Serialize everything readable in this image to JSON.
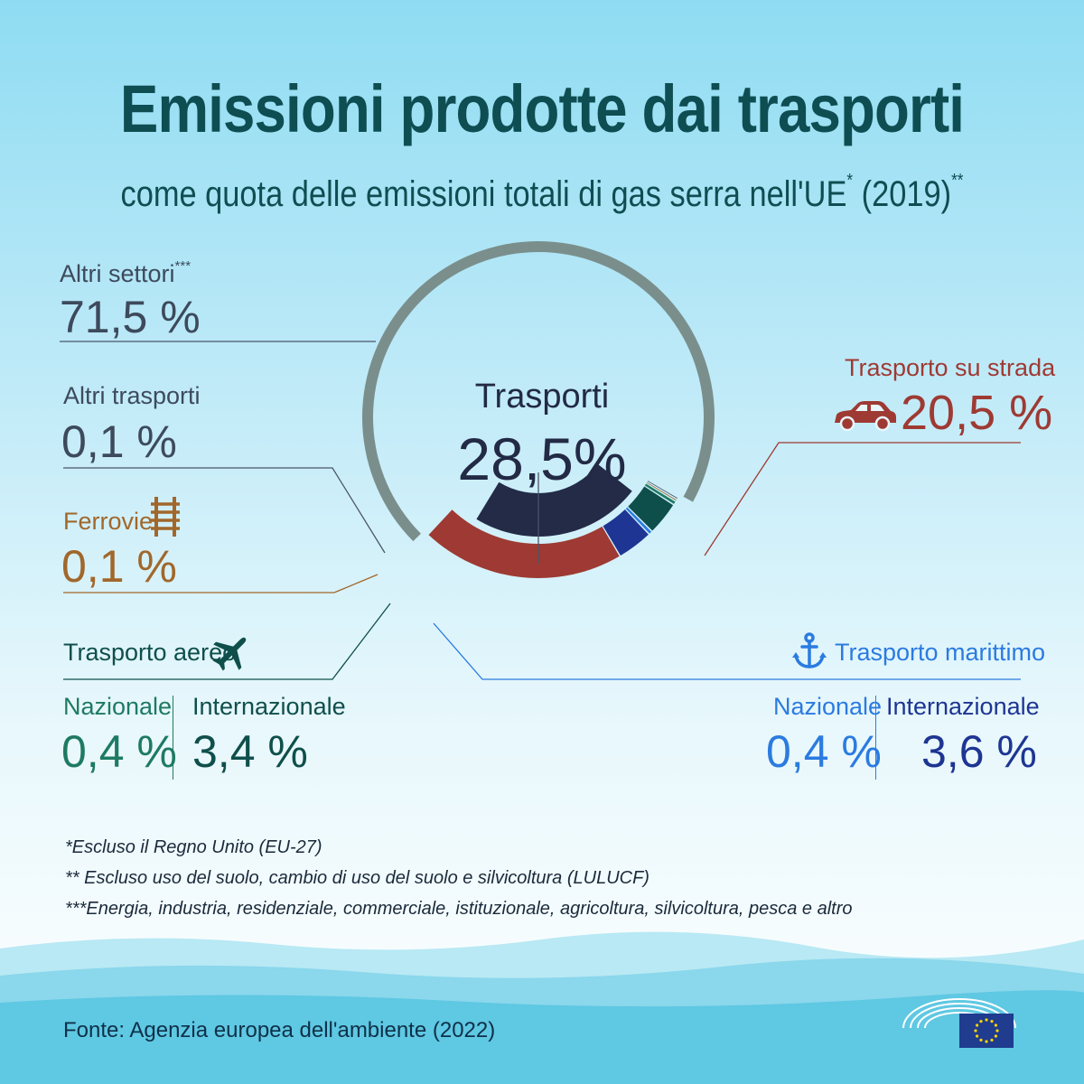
{
  "title": "Emissioni prodotte dai trasporti",
  "subtitle_main": "come quota delle emissioni totali di gas serra nell'UE",
  "subtitle_mark1": "*",
  "subtitle_year": "(2019)",
  "subtitle_mark2": "**",
  "center": {
    "label": "Trasporti",
    "value": "28,5%"
  },
  "labels": {
    "altri_settori": {
      "name": "Altri settori",
      "mark": "***",
      "value": "71,5 %"
    },
    "altri_trasporti": {
      "name": "Altri trasporti",
      "value": "0,1 %"
    },
    "ferrovie": {
      "name": "Ferrovie",
      "value": "0,1 %"
    },
    "strada": {
      "name": "Trasporto su strada",
      "value": "20,5 %"
    },
    "aereo": {
      "name": "Trasporto aereo",
      "naz_label": "Nazionale",
      "naz_value": "0,4 %",
      "int_label": "Internazionale",
      "int_value": "3,4 %"
    },
    "marittimo": {
      "name": "Trasporto marittimo",
      "naz_label": "Nazionale",
      "naz_value": "0,4 %",
      "int_label": "Internazionale",
      "int_value": "3,6 %"
    }
  },
  "notes": [
    "*Escluso il Regno Unito (EU-27)",
    "** Escluso uso del suolo, cambio di uso del suolo e silvicoltura (LULUCF)",
    "***Energia, industria, residenziale, commerciale, istituzionale, agricoltura, silvicoltura, pesca e altro"
  ],
  "source": "Fonte: Agenzia europea dell'ambiente (2022)",
  "colors": {
    "altri_settori": "#7a8f8c",
    "trasporti_total": "#232b47",
    "strada": "#9e3a33",
    "aereo_int": "#0f4f4b",
    "aereo_naz": "#1e7a63",
    "marittimo_int": "#1e3593",
    "marittimo_naz": "#2b7be0",
    "ferrovie": "#a1672b",
    "altri_trasporti": "#4b5567"
  },
  "chart_data": {
    "type": "pie",
    "title": "Emissioni prodotte dai trasporti",
    "slices": [
      {
        "name": "Altri settori",
        "value": 71.5
      },
      {
        "name": "Trasporto su strada",
        "value": 20.5
      },
      {
        "name": "Trasporto marittimo - Internazionale",
        "value": 3.6
      },
      {
        "name": "Trasporto marittimo - Nazionale",
        "value": 0.4
      },
      {
        "name": "Trasporto aereo - Internazionale",
        "value": 3.4
      },
      {
        "name": "Trasporto aereo - Nazionale",
        "value": 0.4
      },
      {
        "name": "Ferrovie",
        "value": 0.1
      },
      {
        "name": "Altri trasporti",
        "value": 0.1
      }
    ],
    "group": {
      "name": "Trasporti",
      "value": 28.5
    }
  }
}
